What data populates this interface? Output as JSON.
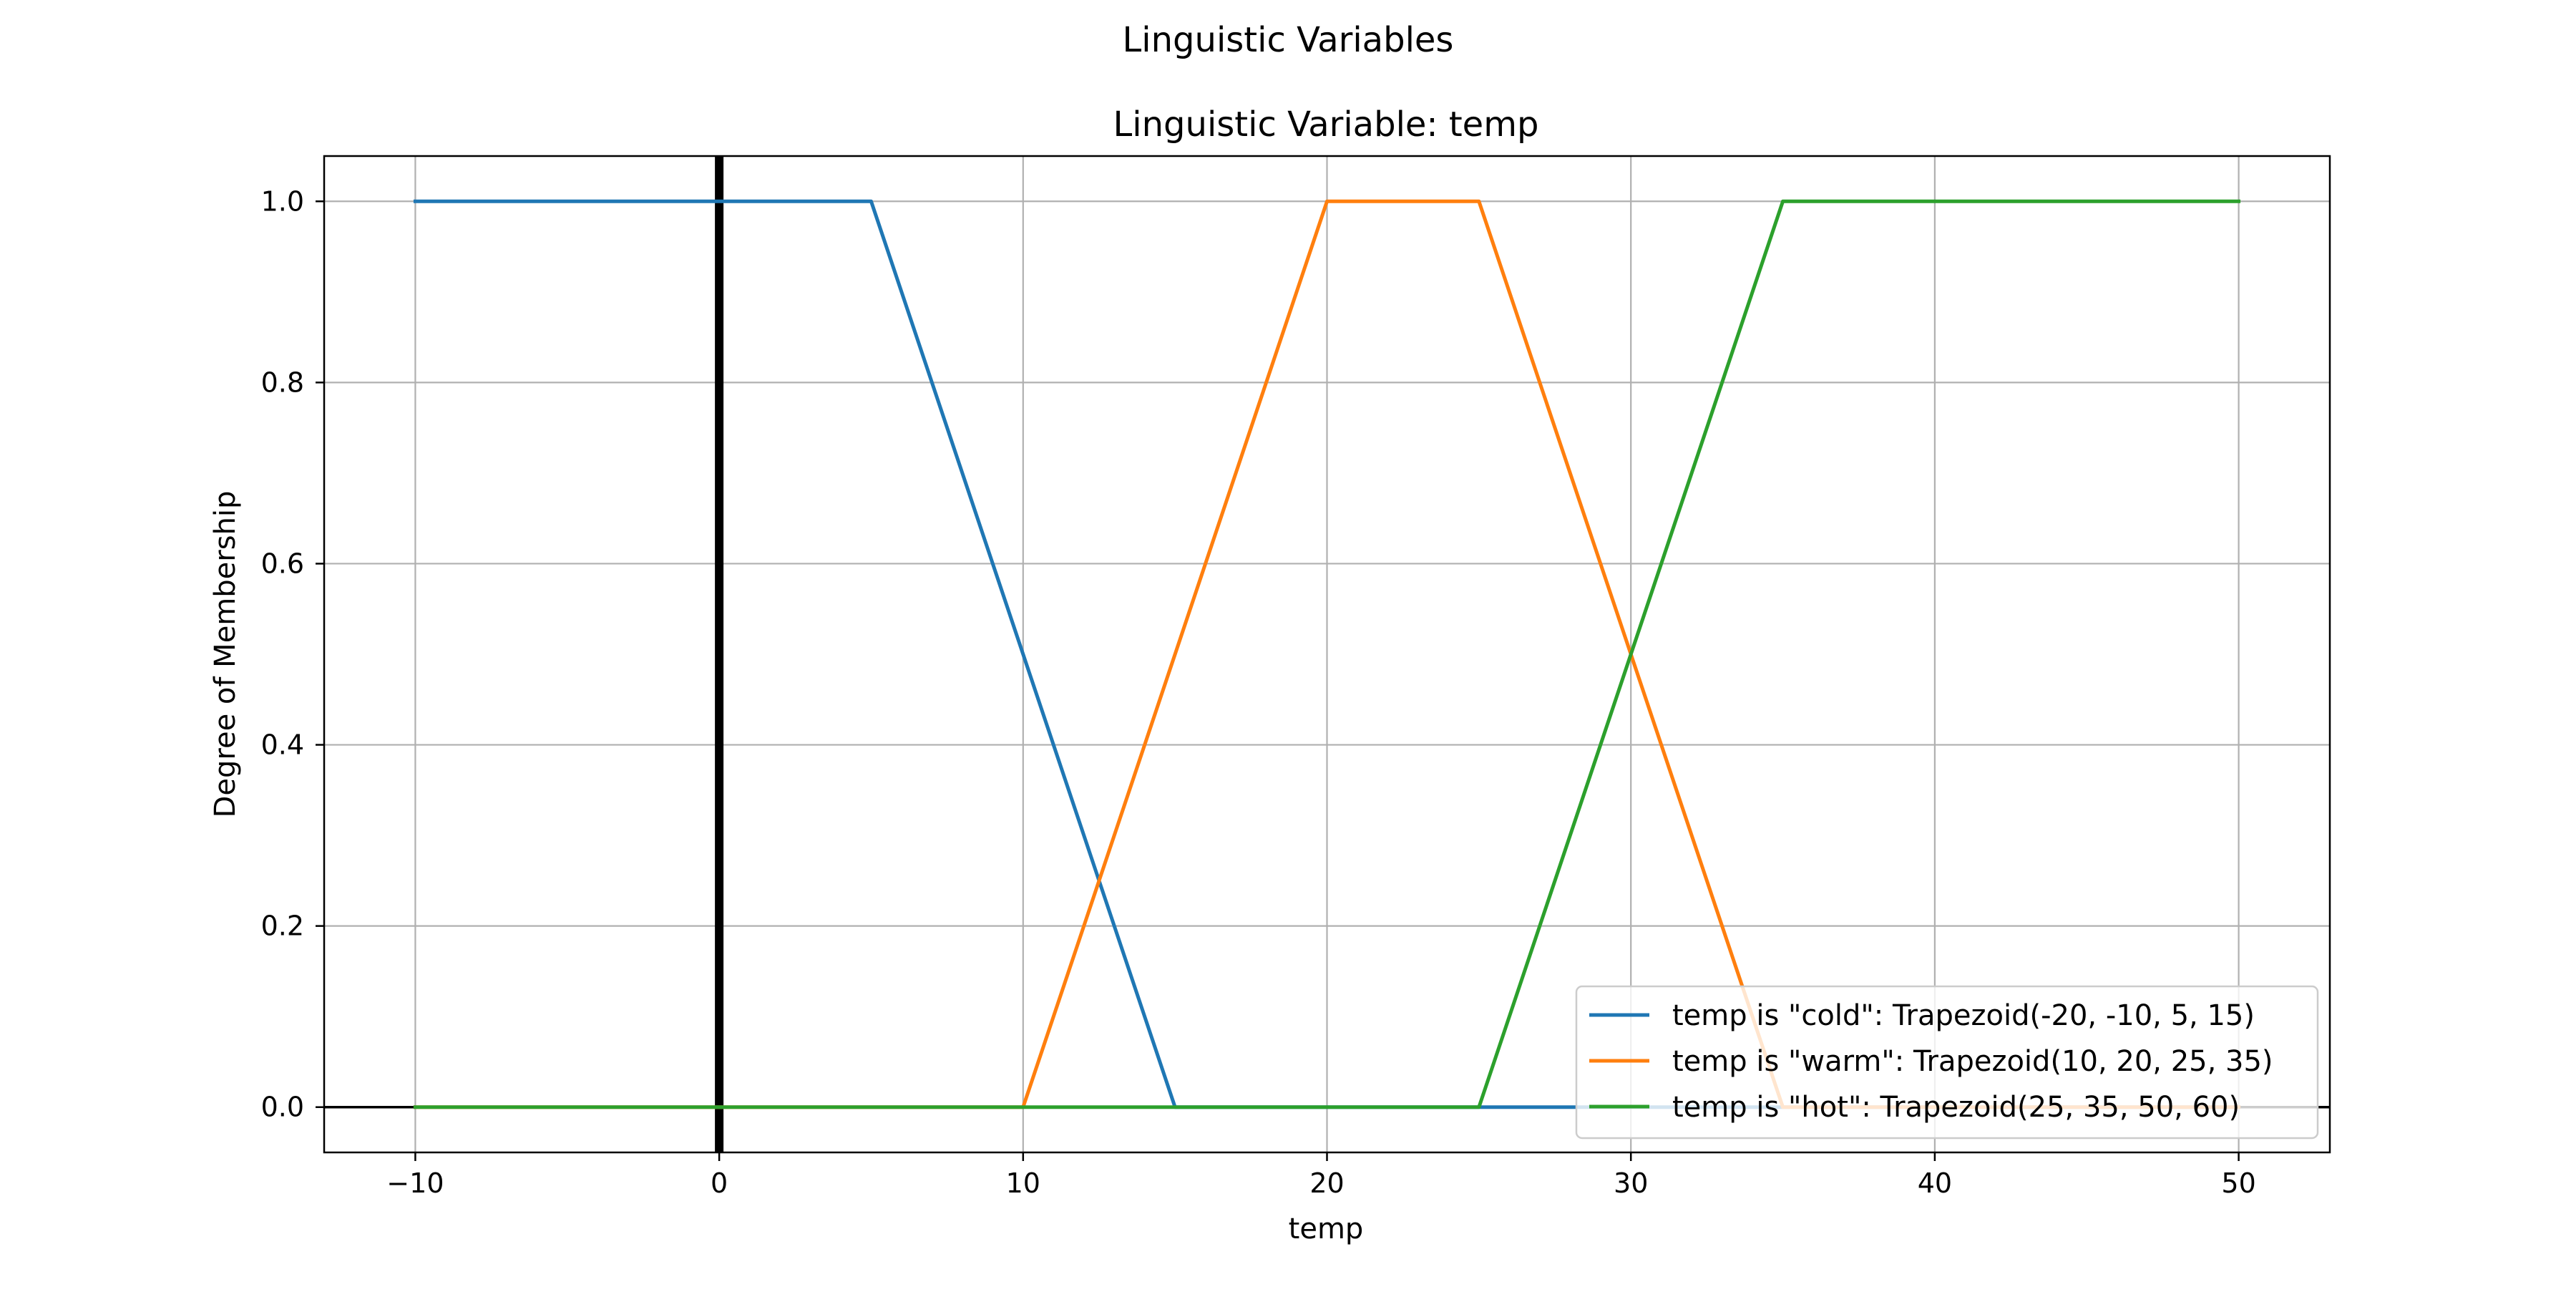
{
  "figure": {
    "suptitle": "Linguistic Variables"
  },
  "chart_data": {
    "type": "line",
    "title": "Linguistic Variable: temp",
    "xlabel": "temp",
    "ylabel": "Degree of Membership",
    "xlim": [
      -13,
      53
    ],
    "ylim": [
      -0.05,
      1.05
    ],
    "x_ticks": [
      -10,
      0,
      10,
      20,
      30,
      40,
      50
    ],
    "x_tick_labels": [
      "−10",
      "0",
      "10",
      "20",
      "30",
      "40",
      "50"
    ],
    "y_ticks": [
      0.0,
      0.2,
      0.4,
      0.6,
      0.8,
      1.0
    ],
    "y_tick_labels": [
      "0.0",
      "0.2",
      "0.4",
      "0.6",
      "0.8",
      "1.0"
    ],
    "grid": true,
    "legend_position": "lower-right",
    "reference_lines": {
      "vertical_at_x": 0,
      "horizontal_at_y": 0
    },
    "series": [
      {
        "name": "temp is \"cold\": Trapezoid(-20, -10, 5, 15)",
        "color": "#1f77b4",
        "points": [
          [
            -10,
            1.0
          ],
          [
            5,
            1.0
          ],
          [
            15,
            0.0
          ],
          [
            50,
            0.0
          ]
        ]
      },
      {
        "name": "temp is \"warm\": Trapezoid(10, 20, 25, 35)",
        "color": "#ff7f0e",
        "points": [
          [
            -10,
            0.0
          ],
          [
            10,
            0.0
          ],
          [
            20,
            1.0
          ],
          [
            25,
            1.0
          ],
          [
            35,
            0.0
          ],
          [
            50,
            0.0
          ]
        ]
      },
      {
        "name": "temp is \"hot\": Trapezoid(25, 35, 50, 60)",
        "color": "#2ca02c",
        "points": [
          [
            -10,
            0.0
          ],
          [
            25,
            0.0
          ],
          [
            35,
            1.0
          ],
          [
            50,
            1.0
          ]
        ]
      }
    ]
  }
}
